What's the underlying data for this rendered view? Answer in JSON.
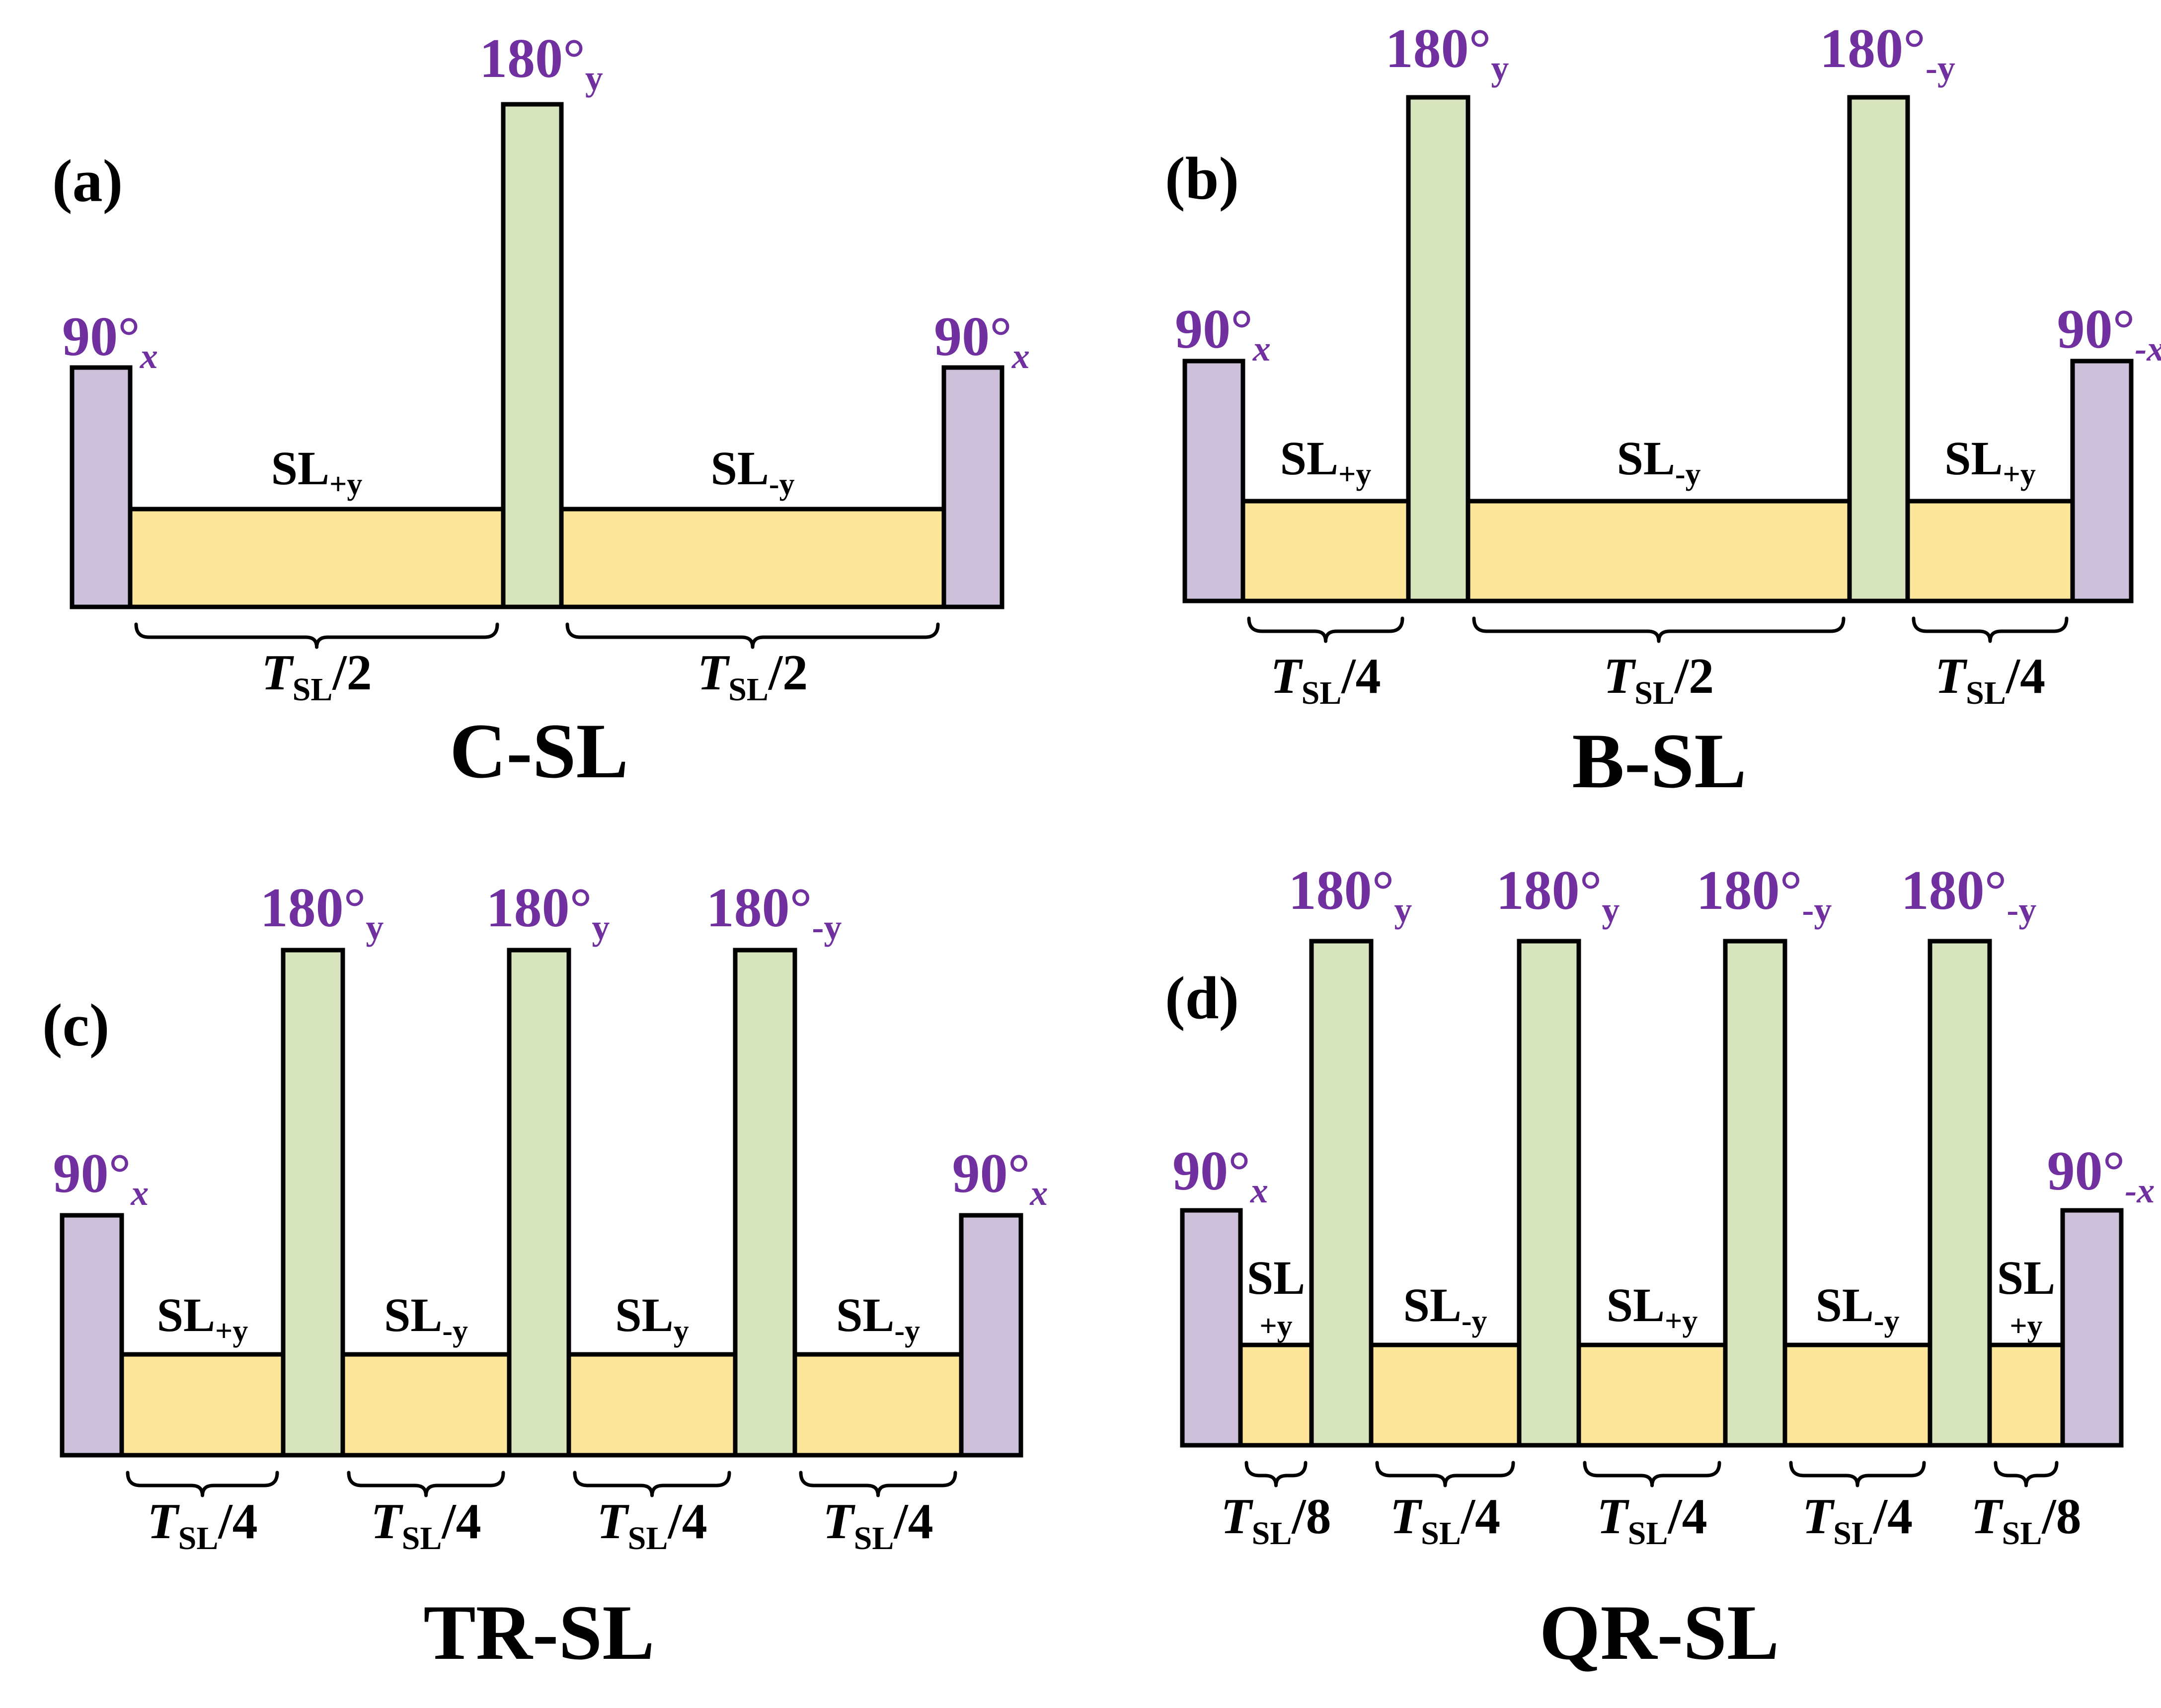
{
  "colors": {
    "pulse90": "#ccc0da",
    "pulse180": "#d7e4bd",
    "spinlock": "#fde69a",
    "pulse_label": "#7030a0"
  },
  "panels": [
    {
      "letter": "(a)",
      "caption": "C-SL",
      "pulses": [
        {
          "type": "90",
          "label": "90°",
          "sub": "x",
          "sub_italic": true
        },
        {
          "type": "180",
          "label": "180°",
          "sub": "y",
          "sub_italic": false
        },
        {
          "type": "90",
          "label": "90°",
          "sub": "x",
          "sub_italic": true
        }
      ],
      "spinlocks": [
        {
          "main": "SL",
          "sub": "+y"
        },
        {
          "main": "SL",
          "sub": "-y"
        }
      ],
      "durations": [
        {
          "T": "T",
          "sub": "SL",
          "frac": "/2"
        },
        {
          "T": "T",
          "sub": "SL",
          "frac": "/2"
        }
      ]
    },
    {
      "letter": "(b)",
      "caption": "B-SL",
      "pulses": [
        {
          "type": "90",
          "label": "90°",
          "sub": "x",
          "sub_italic": true
        },
        {
          "type": "180",
          "label": "180°",
          "sub": "y",
          "sub_italic": false
        },
        {
          "type": "180",
          "label": "180°",
          "sub": "-y",
          "sub_italic": false
        },
        {
          "type": "90",
          "label": "90°",
          "sub": "-x",
          "sub_italic": true
        }
      ],
      "spinlocks": [
        {
          "main": "SL",
          "sub": "+y"
        },
        {
          "main": "SL",
          "sub": "-y"
        },
        {
          "main": "SL",
          "sub": "+y"
        }
      ],
      "durations": [
        {
          "T": "T",
          "sub": "SL",
          "frac": "/4"
        },
        {
          "T": "T",
          "sub": "SL",
          "frac": "/2"
        },
        {
          "T": "T",
          "sub": "SL",
          "frac": "/4"
        }
      ]
    },
    {
      "letter": "(c)",
      "caption": "TR-SL",
      "pulses": [
        {
          "type": "90",
          "label": "90°",
          "sub": "x",
          "sub_italic": true
        },
        {
          "type": "180",
          "label": "180°",
          "sub": "y",
          "sub_italic": false
        },
        {
          "type": "180",
          "label": "180°",
          "sub": "y",
          "sub_italic": false
        },
        {
          "type": "180",
          "label": "180°",
          "sub": "-y",
          "sub_italic": false
        },
        {
          "type": "90",
          "label": "90°",
          "sub": "x",
          "sub_italic": true
        }
      ],
      "spinlocks": [
        {
          "main": "SL",
          "sub": "+y"
        },
        {
          "main": "SL",
          "sub": "-y"
        },
        {
          "main": "SL",
          "sub": "y"
        },
        {
          "main": "SL",
          "sub": "-y"
        }
      ],
      "durations": [
        {
          "T": "T",
          "sub": "SL",
          "frac": "/4"
        },
        {
          "T": "T",
          "sub": "SL",
          "frac": "/4"
        },
        {
          "T": "T",
          "sub": "SL",
          "frac": "/4"
        },
        {
          "T": "T",
          "sub": "SL",
          "frac": "/4"
        }
      ]
    },
    {
      "letter": "(d)",
      "caption": "QR-SL",
      "pulses": [
        {
          "type": "90",
          "label": "90°",
          "sub": "x",
          "sub_italic": true
        },
        {
          "type": "180",
          "label": "180°",
          "sub": "y",
          "sub_italic": false
        },
        {
          "type": "180",
          "label": "180°",
          "sub": "y",
          "sub_italic": false
        },
        {
          "type": "180",
          "label": "180°",
          "sub": "-y",
          "sub_italic": false
        },
        {
          "type": "180",
          "label": "180°",
          "sub": "-y",
          "sub_italic": false
        },
        {
          "type": "90",
          "label": "90°",
          "sub": "-x",
          "sub_italic": true
        }
      ],
      "spinlocks": [
        {
          "main": "SL",
          "sub": "+y",
          "stacked": true
        },
        {
          "main": "SL",
          "sub": "-y"
        },
        {
          "main": "SL",
          "sub": "+y"
        },
        {
          "main": "SL",
          "sub": "-y"
        },
        {
          "main": "SL",
          "sub": "+y",
          "stacked": true
        }
      ],
      "durations": [
        {
          "T": "T",
          "sub": "SL",
          "frac": "/8"
        },
        {
          "T": "T",
          "sub": "SL",
          "frac": "/4"
        },
        {
          "T": "T",
          "sub": "SL",
          "frac": "/4"
        },
        {
          "T": "T",
          "sub": "SL",
          "frac": "/4"
        },
        {
          "T": "T",
          "sub": "SL",
          "frac": "/8"
        }
      ]
    }
  ]
}
